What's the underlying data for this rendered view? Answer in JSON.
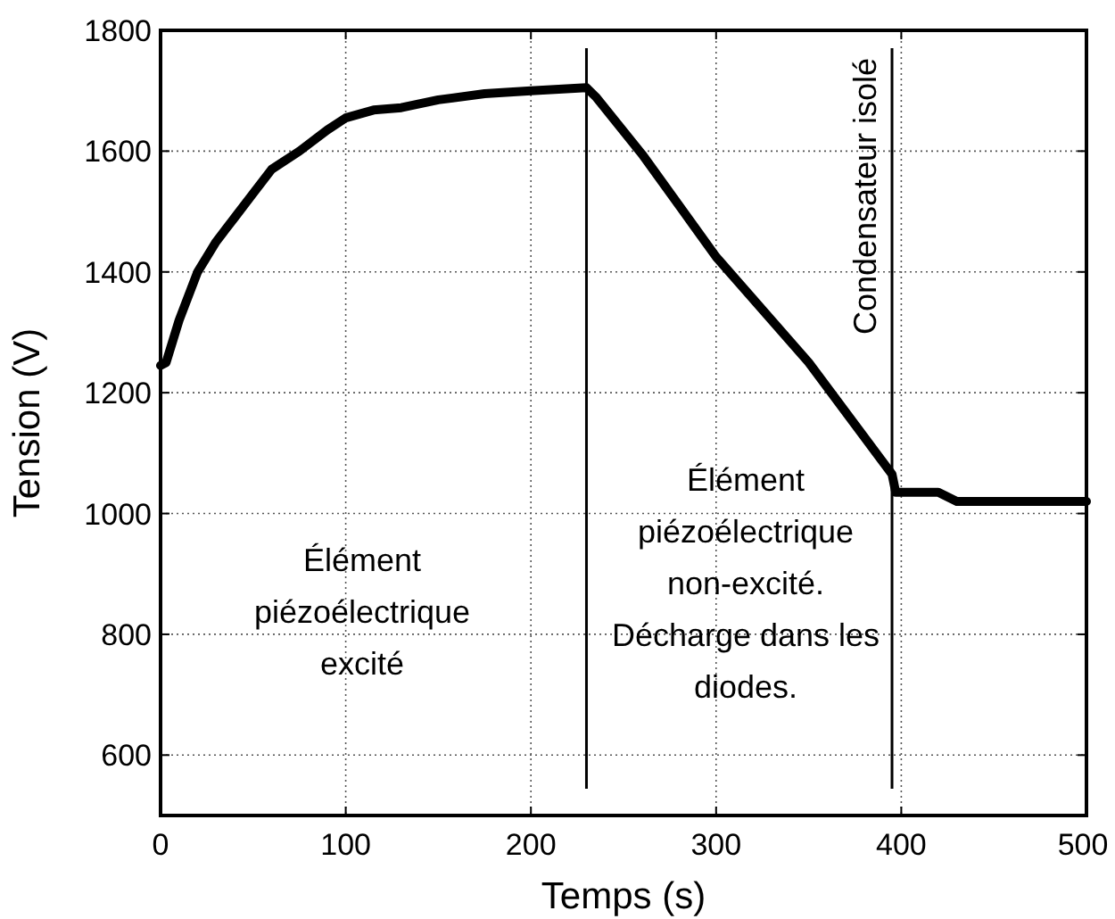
{
  "chart_data": {
    "type": "line",
    "xlabel": "Temps (s)",
    "ylabel": "Tension (V)",
    "xlim": [
      0,
      500
    ],
    "xticks": [
      0,
      100,
      200,
      300,
      400,
      500
    ],
    "ylim": [
      500,
      1800
    ],
    "yticks": [
      600,
      800,
      1000,
      1200,
      1400,
      1600,
      1800
    ],
    "grid": true,
    "series": [
      {
        "color": "#000000",
        "x": [
          0,
          3,
          10,
          20,
          30,
          40,
          50,
          60,
          75,
          90,
          100,
          115,
          130,
          150,
          175,
          200,
          230,
          235,
          260,
          300,
          350,
          395,
          397,
          420,
          430,
          500
        ],
        "values": [
          1245,
          1250,
          1320,
          1400,
          1450,
          1490,
          1530,
          1570,
          1600,
          1635,
          1655,
          1668,
          1672,
          1685,
          1695,
          1700,
          1705,
          1690,
          1595,
          1425,
          1250,
          1065,
          1035,
          1035,
          1020,
          1020
        ]
      }
    ],
    "ref_lines": [
      {
        "axis": "x",
        "value": 230,
        "color": "#000000"
      },
      {
        "axis": "x",
        "value": 395,
        "color": "#000000"
      }
    ],
    "annotations": [
      "Élément\npiézoélectrique\nexcité",
      "Élément\npiézoélectrique\nnon-excité.\nDécharge dans les\ndiodes.",
      "Condensateur isolé"
    ]
  }
}
